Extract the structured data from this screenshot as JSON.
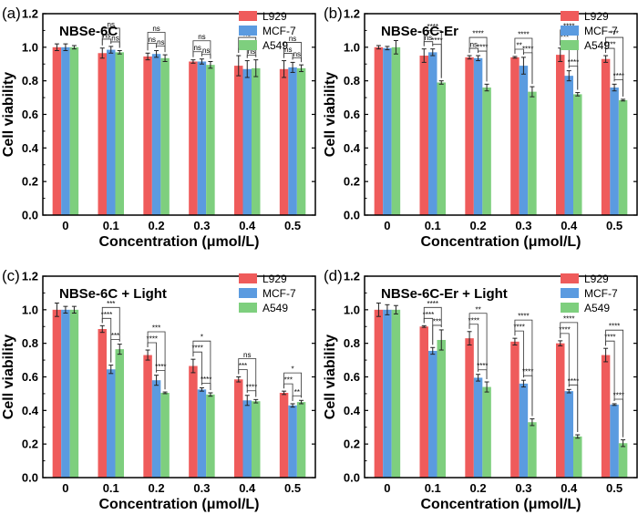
{
  "figure": {
    "colors": {
      "L929": "#ef5b5b",
      "MCF-7": "#5b9be0",
      "A549": "#7ecf7e",
      "axis": "#000000"
    }
  },
  "chart_data": [
    {
      "panel": "(a)",
      "type": "bar",
      "title": "NBSe-6C",
      "xlabel": "Concentration (μmol/L)",
      "ylabel": "Cell viability",
      "ylim": [
        0,
        1.2
      ],
      "yticks": [
        "0.0",
        "0.2",
        "0.4",
        "0.6",
        "0.8",
        "1.0",
        "1.2"
      ],
      "categories": [
        "0",
        "0.1",
        "0.2",
        "0.3",
        "0.4",
        "0.5"
      ],
      "legend_position": "top-right",
      "series": [
        {
          "name": "L929",
          "values": [
            1.0,
            0.965,
            0.945,
            0.915,
            0.89,
            0.87
          ],
          "errors": [
            0.02,
            0.03,
            0.02,
            0.01,
            0.06,
            0.05
          ]
        },
        {
          "name": "MCF-7",
          "values": [
            1.0,
            0.985,
            0.96,
            0.915,
            0.87,
            0.88
          ],
          "errors": [
            0.02,
            0.02,
            0.02,
            0.015,
            0.05,
            0.03
          ]
        },
        {
          "name": "A549",
          "values": [
            1.0,
            0.97,
            0.935,
            0.895,
            0.875,
            0.875
          ],
          "errors": [
            0.01,
            0.01,
            0.02,
            0.02,
            0.05,
            0.02
          ]
        }
      ],
      "significance": [
        {
          "cat": 1,
          "labels": [
            "ns",
            "ns",
            "ns"
          ]
        },
        {
          "cat": 2,
          "labels": [
            "ns",
            "ns",
            "ns"
          ]
        },
        {
          "cat": 3,
          "labels": [
            "ns",
            "ns",
            "ns"
          ]
        },
        {
          "cat": 4,
          "labels": [
            "ns",
            "ns",
            "ns"
          ]
        },
        {
          "cat": 5,
          "labels": [
            "ns",
            "ns",
            "ns"
          ]
        }
      ]
    },
    {
      "panel": "(b)",
      "type": "bar",
      "title": "NBSe-6C-Er",
      "xlabel": "Concentration (μmol/L)",
      "ylabel": "Cell viability",
      "ylim": [
        0,
        1.2
      ],
      "yticks": [
        "0.0",
        "0.2",
        "0.4",
        "0.6",
        "0.8",
        "1.0",
        "1.2"
      ],
      "categories": [
        "0",
        "0.1",
        "0.2",
        "0.3",
        "0.4",
        "0.5"
      ],
      "legend_position": "top-right",
      "series": [
        {
          "name": "L929",
          "values": [
            1.0,
            0.95,
            0.94,
            0.94,
            0.955,
            0.93
          ],
          "errors": [
            0.01,
            0.04,
            0.01,
            0.005,
            0.04,
            0.02
          ]
        },
        {
          "name": "MCF-7",
          "values": [
            0.995,
            0.97,
            0.935,
            0.89,
            0.83,
            0.76
          ],
          "errors": [
            0.01,
            0.02,
            0.015,
            0.05,
            0.03,
            0.02
          ]
        },
        {
          "name": "A549",
          "values": [
            1.0,
            0.79,
            0.76,
            0.735,
            0.72,
            0.685
          ],
          "errors": [
            0.04,
            0.01,
            0.02,
            0.03,
            0.01,
            0.005
          ]
        }
      ],
      "significance": [
        {
          "cat": 1,
          "labels": [
            "ns",
            "****",
            "****"
          ]
        },
        {
          "cat": 2,
          "labels": [
            "ns",
            "****",
            "****"
          ]
        },
        {
          "cat": 3,
          "labels": [
            "**",
            "****",
            "****"
          ]
        },
        {
          "cat": 4,
          "labels": [
            "***",
            "****",
            "****"
          ]
        },
        {
          "cat": 5,
          "labels": [
            "****",
            "****",
            "***"
          ]
        }
      ]
    },
    {
      "panel": "(c)",
      "type": "bar",
      "title": "NBSe-6C  + Light",
      "xlabel": "Concentration (μmol/L)",
      "ylabel": "Cell viability",
      "ylim": [
        0,
        1.2
      ],
      "yticks": [
        "0.0",
        "0.2",
        "0.4",
        "0.6",
        "0.8",
        "1.0",
        "1.2"
      ],
      "categories": [
        "0",
        "0.1",
        "0.2",
        "0.3",
        "0.4",
        "0.5"
      ],
      "legend_position": "top-right",
      "series": [
        {
          "name": "L929",
          "values": [
            1.0,
            0.885,
            0.73,
            0.665,
            0.585,
            0.505
          ],
          "errors": [
            0.04,
            0.02,
            0.03,
            0.04,
            0.015,
            0.01
          ]
        },
        {
          "name": "MCF-7",
          "values": [
            1.0,
            0.645,
            0.58,
            0.525,
            0.46,
            0.43
          ],
          "errors": [
            0.02,
            0.025,
            0.03,
            0.01,
            0.03,
            0.01
          ]
        },
        {
          "name": "A549",
          "values": [
            1.0,
            0.765,
            0.505,
            0.495,
            0.455,
            0.45
          ],
          "errors": [
            0.02,
            0.03,
            0.005,
            0.01,
            0.01,
            0.01
          ]
        }
      ],
      "significance": [
        {
          "cat": 1,
          "labels": [
            "****",
            "***",
            "***"
          ]
        },
        {
          "cat": 2,
          "labels": [
            "****",
            "****",
            "***"
          ]
        },
        {
          "cat": 3,
          "labels": [
            "****",
            "****",
            "*"
          ]
        },
        {
          "cat": 4,
          "labels": [
            "***",
            "****",
            "ns"
          ]
        },
        {
          "cat": 5,
          "labels": [
            "***",
            "**",
            "*"
          ]
        }
      ]
    },
    {
      "panel": "(d)",
      "type": "bar",
      "title": "NBSe-6C-Er + Light",
      "xlabel": "Concentration (μmol/L)",
      "ylabel": "Cell viability",
      "ylim": [
        0,
        1.2
      ],
      "yticks": [
        "0.0",
        "0.2",
        "0.4",
        "0.6",
        "0.8",
        "1.0",
        "1.2"
      ],
      "categories": [
        "0",
        "0.1",
        "0.2",
        "0.3",
        "0.4",
        "0.5"
      ],
      "legend_position": "top-right",
      "series": [
        {
          "name": "L929",
          "values": [
            1.0,
            0.9,
            0.83,
            0.81,
            0.8,
            0.73
          ],
          "errors": [
            0.04,
            0.005,
            0.04,
            0.02,
            0.015,
            0.04
          ]
        },
        {
          "name": "MCF-7",
          "values": [
            1.0,
            0.755,
            0.595,
            0.56,
            0.515,
            0.435
          ],
          "errors": [
            0.03,
            0.02,
            0.02,
            0.02,
            0.01,
            0.005
          ]
        },
        {
          "name": "A549",
          "values": [
            1.0,
            0.82,
            0.54,
            0.33,
            0.245,
            0.205
          ],
          "errors": [
            0.025,
            0.06,
            0.03,
            0.02,
            0.01,
            0.02
          ]
        }
      ],
      "significance": [
        {
          "cat": 1,
          "labels": [
            "****",
            "***",
            "****"
          ]
        },
        {
          "cat": 2,
          "labels": [
            "****",
            "****",
            "**"
          ]
        },
        {
          "cat": 3,
          "labels": [
            "****",
            "****",
            "****"
          ]
        },
        {
          "cat": 4,
          "labels": [
            "****",
            "****",
            "****"
          ]
        },
        {
          "cat": 5,
          "labels": [
            "****",
            "****",
            "****"
          ]
        }
      ]
    }
  ]
}
